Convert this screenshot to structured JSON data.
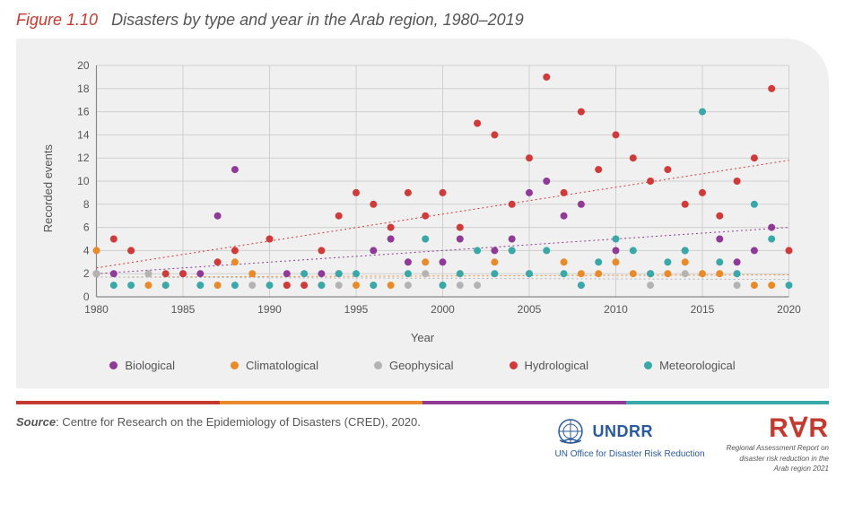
{
  "title": {
    "number": "Figure 1.10",
    "text": "Disasters by type and year in the Arab region, 1980–2019"
  },
  "chart": {
    "type": "scatter",
    "background_color": "#f0f0f0",
    "grid_color": "#cfcfcf",
    "axis_color": "#888888",
    "tick_fontsize": 12,
    "tick_color": "#555555",
    "xlabel": "Year",
    "ylabel": "Recorded events",
    "xlim": [
      1980,
      2020
    ],
    "ylim": [
      0,
      20
    ],
    "xtick_step": 5,
    "ytick_step": 2,
    "marker_radius": 4,
    "series": [
      {
        "name": "Biological",
        "color": "#8e3a96",
        "points": [
          [
            1980,
            2
          ],
          [
            1981,
            2
          ],
          [
            1985,
            2
          ],
          [
            1986,
            2
          ],
          [
            1987,
            7
          ],
          [
            1988,
            11
          ],
          [
            1991,
            2
          ],
          [
            1993,
            2
          ],
          [
            1994,
            2
          ],
          [
            1996,
            4
          ],
          [
            1997,
            5
          ],
          [
            1998,
            3
          ],
          [
            2000,
            3
          ],
          [
            2001,
            5
          ],
          [
            2003,
            4
          ],
          [
            2004,
            5
          ],
          [
            2005,
            9
          ],
          [
            2006,
            10
          ],
          [
            2007,
            7
          ],
          [
            2008,
            8
          ],
          [
            2010,
            4
          ],
          [
            2012,
            2
          ],
          [
            2014,
            4
          ],
          [
            2016,
            5
          ],
          [
            2017,
            3
          ],
          [
            2018,
            4
          ],
          [
            2019,
            6
          ]
        ],
        "trend": {
          "y1": 2.0,
          "y2": 6.0
        }
      },
      {
        "name": "Climatological",
        "color": "#e98a2a",
        "points": [
          [
            1980,
            4
          ],
          [
            1982,
            4
          ],
          [
            1983,
            1
          ],
          [
            1984,
            1
          ],
          [
            1987,
            1
          ],
          [
            1988,
            3
          ],
          [
            1989,
            2
          ],
          [
            1991,
            1
          ],
          [
            1993,
            1
          ],
          [
            1995,
            1
          ],
          [
            1997,
            1
          ],
          [
            1999,
            3
          ],
          [
            2000,
            1
          ],
          [
            2001,
            2
          ],
          [
            2003,
            3
          ],
          [
            2005,
            2
          ],
          [
            2007,
            3
          ],
          [
            2008,
            2
          ],
          [
            2009,
            2
          ],
          [
            2010,
            3
          ],
          [
            2011,
            2
          ],
          [
            2012,
            2
          ],
          [
            2013,
            2
          ],
          [
            2014,
            3
          ],
          [
            2015,
            2
          ],
          [
            2016,
            2
          ],
          [
            2017,
            2
          ],
          [
            2018,
            1
          ],
          [
            2019,
            1
          ]
        ],
        "trend": {
          "y1": 1.7,
          "y2": 1.9
        }
      },
      {
        "name": "Geophysical",
        "color": "#b3b3b3",
        "points": [
          [
            1980,
            2
          ],
          [
            1983,
            2
          ],
          [
            1986,
            1
          ],
          [
            1989,
            1
          ],
          [
            1992,
            2
          ],
          [
            1994,
            1
          ],
          [
            1996,
            1
          ],
          [
            1998,
            1
          ],
          [
            1999,
            2
          ],
          [
            2001,
            1
          ],
          [
            2002,
            1
          ],
          [
            2003,
            2
          ],
          [
            2004,
            4
          ],
          [
            2005,
            2
          ],
          [
            2008,
            1
          ],
          [
            2012,
            1
          ],
          [
            2014,
            2
          ],
          [
            2017,
            1
          ]
        ],
        "trend": {
          "y1": 1.7,
          "y2": 1.5
        }
      },
      {
        "name": "Hydrological",
        "color": "#cf3a3a",
        "points": [
          [
            1981,
            5
          ],
          [
            1982,
            4
          ],
          [
            1984,
            2
          ],
          [
            1985,
            2
          ],
          [
            1987,
            3
          ],
          [
            1988,
            4
          ],
          [
            1990,
            5
          ],
          [
            1991,
            1
          ],
          [
            1992,
            1
          ],
          [
            1993,
            4
          ],
          [
            1994,
            7
          ],
          [
            1995,
            9
          ],
          [
            1996,
            8
          ],
          [
            1997,
            6
          ],
          [
            1998,
            9
          ],
          [
            1999,
            7
          ],
          [
            2000,
            9
          ],
          [
            2001,
            6
          ],
          [
            2002,
            15
          ],
          [
            2003,
            14
          ],
          [
            2004,
            8
          ],
          [
            2005,
            12
          ],
          [
            2006,
            19
          ],
          [
            2007,
            9
          ],
          [
            2008,
            16
          ],
          [
            2009,
            11
          ],
          [
            2010,
            14
          ],
          [
            2011,
            12
          ],
          [
            2012,
            10
          ],
          [
            2013,
            11
          ],
          [
            2014,
            8
          ],
          [
            2015,
            9
          ],
          [
            2016,
            7
          ],
          [
            2017,
            10
          ],
          [
            2018,
            12
          ],
          [
            2019,
            18
          ],
          [
            2020,
            4
          ]
        ],
        "trend": {
          "y1": 2.5,
          "y2": 11.8
        }
      },
      {
        "name": "Meteorological",
        "color": "#3aa8a8",
        "points": [
          [
            1981,
            1
          ],
          [
            1982,
            1
          ],
          [
            1984,
            1
          ],
          [
            1986,
            1
          ],
          [
            1988,
            1
          ],
          [
            1990,
            1
          ],
          [
            1992,
            2
          ],
          [
            1993,
            1
          ],
          [
            1994,
            2
          ],
          [
            1995,
            2
          ],
          [
            1996,
            1
          ],
          [
            1998,
            2
          ],
          [
            1999,
            5
          ],
          [
            2000,
            1
          ],
          [
            2001,
            2
          ],
          [
            2002,
            4
          ],
          [
            2003,
            2
          ],
          [
            2004,
            4
          ],
          [
            2005,
            2
          ],
          [
            2006,
            4
          ],
          [
            2007,
            2
          ],
          [
            2008,
            1
          ],
          [
            2009,
            3
          ],
          [
            2010,
            5
          ],
          [
            2011,
            4
          ],
          [
            2012,
            2
          ],
          [
            2013,
            3
          ],
          [
            2014,
            4
          ],
          [
            2015,
            16
          ],
          [
            2016,
            3
          ],
          [
            2017,
            2
          ],
          [
            2018,
            8
          ],
          [
            2019,
            5
          ],
          [
            2020,
            1
          ]
        ],
        "trend": null
      }
    ]
  },
  "legend_labels": [
    "Biological",
    "Climatological",
    "Geophysical",
    "Hydrological",
    "Meteorological"
  ],
  "color_bar": [
    "#c43a2f",
    "#e98a2a",
    "#8e3a96",
    "#3aa8a8"
  ],
  "source": {
    "label": "Source",
    "text": ": Centre for Research on the Epidemiology of Disasters (CRED), 2020."
  },
  "logos": {
    "undrr_name": "UNDRR",
    "undrr_sub": "UN Office for Disaster Risk Reduction",
    "undrr_color": "#2a5a9c",
    "rar_text": "R∀R",
    "rar_color": "#c43a2f",
    "rar_sub1": "Regional Assessment Report on",
    "rar_sub2": "disaster risk reduction in the",
    "rar_sub3": "Arab region 2021"
  }
}
